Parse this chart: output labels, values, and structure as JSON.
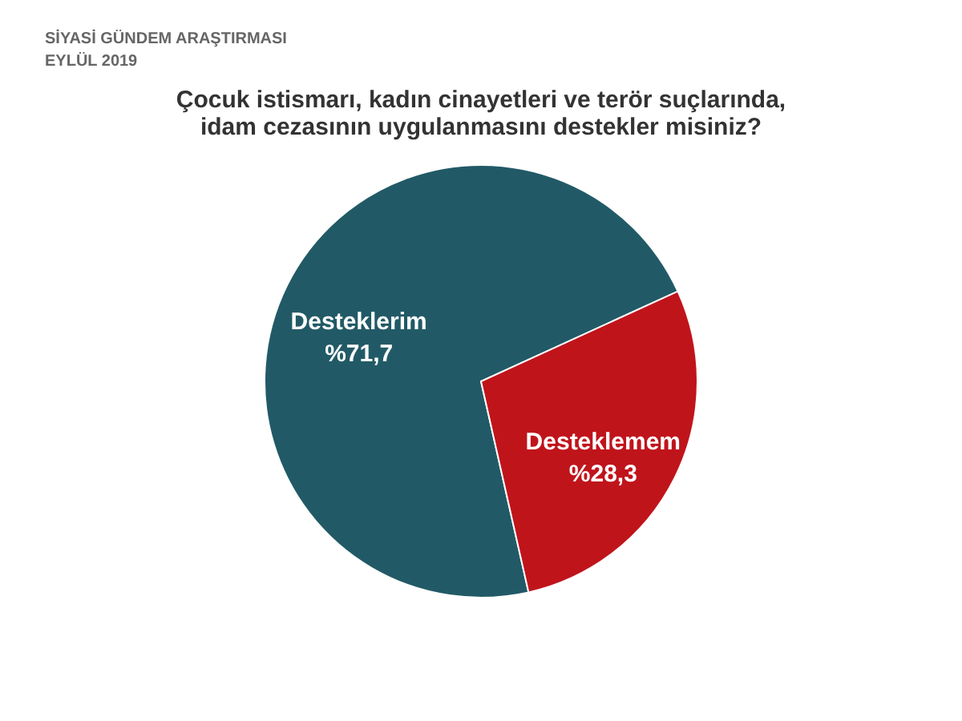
{
  "chart_data": {
    "type": "pie",
    "title": "Çocuk istismarı, kadın cinayetleri ve terör suçlarında, idam cezasının uygulanmasını destekler misiniz?",
    "annotations": [
      "SİYASİ GÜNDEM ARAŞTIRMASI",
      "EYLÜL 2019"
    ],
    "categories": [
      "Desteklerim",
      "Desteklemem"
    ],
    "values": [
      71.7,
      28.3
    ],
    "value_labels": [
      "%71,7",
      "%28,3"
    ],
    "colors": [
      "#215a66",
      "#c0141b"
    ],
    "legend": false
  }
}
